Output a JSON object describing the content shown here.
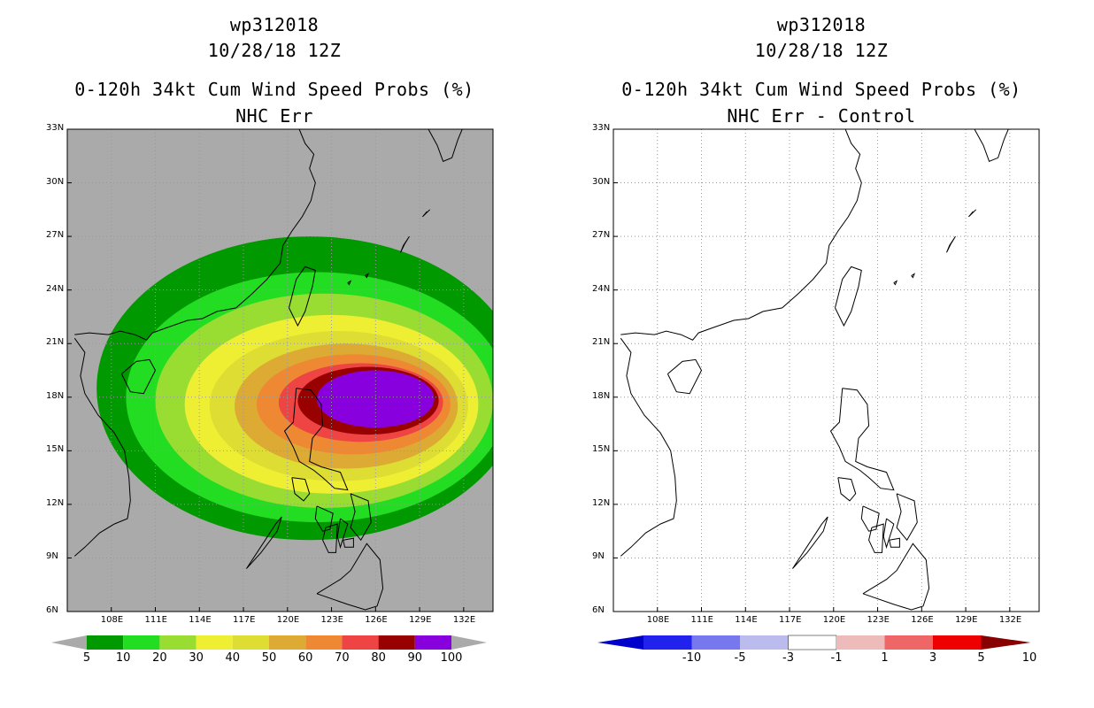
{
  "chart_data": [
    {
      "type": "heatmap",
      "title_lines": [
        "wp312018",
        "10/28/18 12Z",
        "0-120h 34kt Cum Wind Speed Probs (%)",
        "NHC Err"
      ],
      "x_ticks": [
        "108E",
        "111E",
        "114E",
        "117E",
        "120E",
        "123E",
        "126E",
        "129E",
        "132E"
      ],
      "y_ticks": [
        "33N",
        "30N",
        "27N",
        "24N",
        "21N",
        "18N",
        "15N",
        "12N",
        "9N",
        "6N"
      ],
      "x_range": [
        105,
        134
      ],
      "y_range": [
        6,
        33
      ],
      "colorbar": {
        "labels": [
          "5",
          "10",
          "20",
          "30",
          "40",
          "50",
          "60",
          "70",
          "80",
          "90",
          "100"
        ],
        "colors": [
          "#009900",
          "#22dd22",
          "#99dd33",
          "#eeee33",
          "#dddd33",
          "#ddaa33",
          "#ee8833",
          "#ee4444",
          "#990000",
          "#8800dd"
        ]
      },
      "background": "#aaaaaa",
      "probability_levels": [
        {
          "min": 5,
          "color": "#009900",
          "center": [
            121.5,
            18.5
          ],
          "rx": 14.5,
          "ry": 8.5
        },
        {
          "min": 10,
          "color": "#22dd22",
          "center": [
            122.0,
            18.0
          ],
          "rx": 13.0,
          "ry": 7.0
        },
        {
          "min": 20,
          "color": "#99dd33",
          "center": [
            122.5,
            17.8
          ],
          "rx": 11.5,
          "ry": 6.0
        },
        {
          "min": 30,
          "color": "#eeee33",
          "center": [
            123.0,
            17.6
          ],
          "rx": 10.0,
          "ry": 5.0
        },
        {
          "min": 40,
          "color": "#dddd33",
          "center": [
            123.5,
            17.5
          ],
          "rx": 8.8,
          "ry": 4.2
        },
        {
          "min": 50,
          "color": "#ddaa33",
          "center": [
            124.0,
            17.5
          ],
          "rx": 7.6,
          "ry": 3.5
        },
        {
          "min": 60,
          "color": "#ee8833",
          "center": [
            124.5,
            17.6
          ],
          "rx": 6.6,
          "ry": 2.8
        },
        {
          "min": 70,
          "color": "#ee4444",
          "center": [
            125.0,
            17.7
          ],
          "rx": 5.6,
          "ry": 2.2
        },
        {
          "min": 80,
          "color": "#990000",
          "center": [
            125.5,
            17.8
          ],
          "rx": 4.8,
          "ry": 1.9
        },
        {
          "min": 90,
          "color": "#8800dd",
          "center": [
            126.0,
            17.9
          ],
          "rx": 4.0,
          "ry": 1.6
        }
      ]
    },
    {
      "type": "heatmap",
      "title_lines": [
        "wp312018",
        "10/28/18 12Z",
        "0-120h 34kt Cum Wind Speed Probs (%)",
        "NHC Err - Control"
      ],
      "x_ticks": [
        "108E",
        "111E",
        "114E",
        "117E",
        "120E",
        "123E",
        "126E",
        "129E",
        "132E"
      ],
      "y_ticks": [
        "33N",
        "30N",
        "27N",
        "24N",
        "21N",
        "18N",
        "15N",
        "12N",
        "9N",
        "6N"
      ],
      "x_range": [
        105,
        134
      ],
      "y_range": [
        6,
        33
      ],
      "colorbar": {
        "labels": [
          "-10",
          "-5",
          "-3",
          "-1",
          "1",
          "3",
          "5",
          "10"
        ],
        "colors": [
          "#0000cc",
          "#2222ee",
          "#7777ee",
          "#bbbbee",
          "#ffffff",
          "#eebbbb",
          "#ee6666",
          "#ee0000",
          "#880000"
        ]
      },
      "background": "#ffffff"
    }
  ]
}
